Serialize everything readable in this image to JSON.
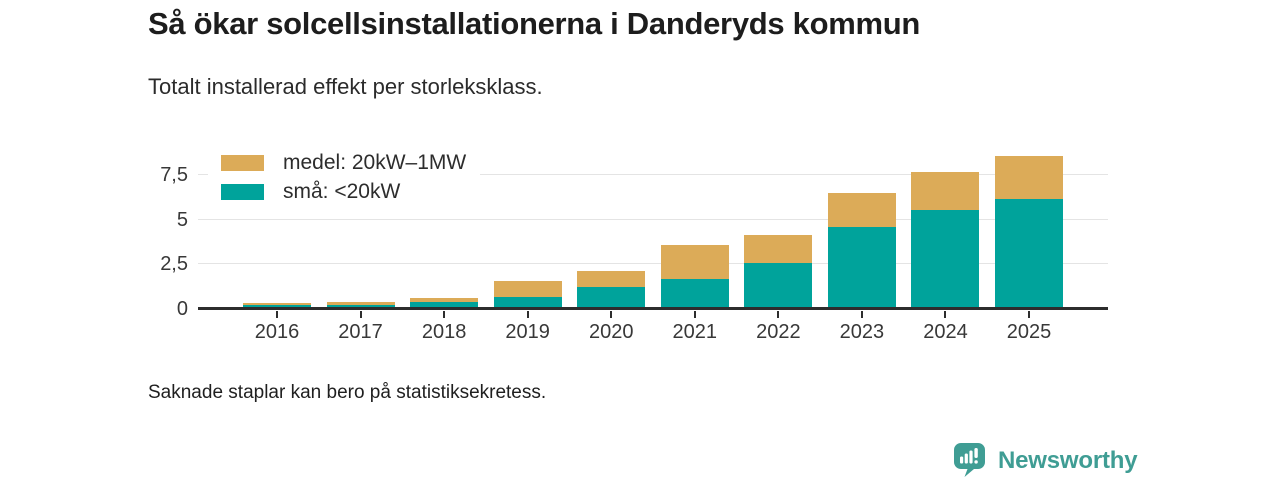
{
  "header": {
    "title": "Så ökar solcellsinstallationerna i Danderyds kommun",
    "subtitle": "Totalt installerad effekt per storleksklass."
  },
  "footer": {
    "note": "Saknade staplar kan bero på statistiksekretess.",
    "brand": "Newsworthy"
  },
  "colors": {
    "small_series": "#00A39B",
    "medium_series": "#DCAB58",
    "brand": "#3F9D94",
    "axis": "#2D2D2D",
    "gridline": "#E4E4E4"
  },
  "chart_data": {
    "type": "bar",
    "stacked": true,
    "title": "Så ökar solcellsinstallationerna i Danderyds kommun",
    "subtitle": "Totalt installerad effekt per storleksklass.",
    "categories": [
      "2016",
      "2017",
      "2018",
      "2019",
      "2020",
      "2021",
      "2022",
      "2023",
      "2024",
      "2025"
    ],
    "series": [
      {
        "name": "medel: 20kW–1MW",
        "color": "#DCAB58",
        "stack_position": "top",
        "values": [
          0.15,
          0.15,
          0.2,
          0.85,
          0.9,
          1.9,
          1.55,
          1.9,
          2.15,
          2.45
        ]
      },
      {
        "name": "små: <20kW",
        "color": "#00A39B",
        "stack_position": "bottom",
        "values": [
          0.2,
          0.25,
          0.4,
          0.7,
          1.25,
          1.7,
          2.6,
          4.6,
          5.55,
          6.15
        ]
      }
    ],
    "stack_totals": [
      0.35,
      0.4,
      0.6,
      1.55,
      2.15,
      3.6,
      4.15,
      6.5,
      7.7,
      8.6
    ],
    "y_ticks": [
      0,
      2.5,
      5,
      7.5
    ],
    "y_tick_labels": [
      "0",
      "2,5",
      "5",
      "7,5"
    ],
    "ylim": [
      0,
      8.9
    ],
    "grid": "horizontal",
    "legend_position": "top-left-inside"
  }
}
